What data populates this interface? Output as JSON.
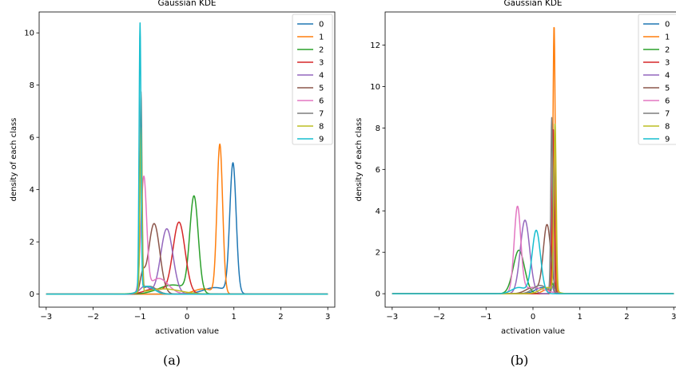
{
  "chart_data": [
    {
      "type": "line",
      "title": "Gaussian KDE",
      "xlabel": "activation value",
      "ylabel": "density of each class",
      "caption": "(a)",
      "xlim": [
        -3.15,
        3.15
      ],
      "ylim": [
        -0.5,
        10.8
      ],
      "xticks": [
        -3,
        -2,
        -1,
        0,
        1,
        2,
        3
      ],
      "xtick_labels": [
        "−3",
        "−2",
        "−1",
        "0",
        "1",
        "2",
        "3"
      ],
      "yticks": [
        0,
        2,
        4,
        6,
        8,
        10
      ],
      "ytick_labels": [
        "0",
        "2",
        "4",
        "6",
        "8",
        "10"
      ],
      "legend_position": "top-right",
      "series": [
        {
          "name": "0",
          "color": "#1f77b4",
          "components": [
            {
              "mu": 0.98,
              "sigma": 0.068,
              "peak": 4.95
            },
            {
              "mu": 0.6,
              "sigma": 0.25,
              "peak": 0.25
            }
          ]
        },
        {
          "name": "1",
          "color": "#ff7f0e",
          "components": [
            {
              "mu": 0.7,
              "sigma": 0.06,
              "peak": 5.7
            },
            {
              "mu": 0.35,
              "sigma": 0.2,
              "peak": 0.2
            }
          ]
        },
        {
          "name": "2",
          "color": "#2ca02c",
          "components": [
            {
              "mu": 0.15,
              "sigma": 0.09,
              "peak": 3.65
            },
            {
              "mu": -0.3,
              "sigma": 0.3,
              "peak": 0.35
            }
          ]
        },
        {
          "name": "3",
          "color": "#d62728",
          "components": [
            {
              "mu": -0.17,
              "sigma": 0.13,
              "peak": 2.75
            },
            {
              "mu": -0.7,
              "sigma": 0.2,
              "peak": 0.2
            }
          ]
        },
        {
          "name": "4",
          "color": "#9467bd",
          "components": [
            {
              "mu": -0.43,
              "sigma": 0.13,
              "peak": 2.5
            },
            {
              "mu": -0.9,
              "sigma": 0.1,
              "peak": 0.3
            }
          ]
        },
        {
          "name": "5",
          "color": "#8c564b",
          "components": [
            {
              "mu": -0.7,
              "sigma": 0.12,
              "peak": 2.7
            },
            {
              "mu": -0.95,
              "sigma": 0.05,
              "peak": 0.6
            }
          ]
        },
        {
          "name": "6",
          "color": "#e377c2",
          "components": [
            {
              "mu": -0.92,
              "sigma": 0.06,
              "peak": 4.35
            },
            {
              "mu": -0.6,
              "sigma": 0.2,
              "peak": 0.6
            }
          ]
        },
        {
          "name": "7",
          "color": "#7f7f7f",
          "components": [
            {
              "mu": -0.98,
              "sigma": 0.022,
              "peak": 7.6
            },
            {
              "mu": -0.8,
              "sigma": 0.15,
              "peak": 0.3
            }
          ]
        },
        {
          "name": "8",
          "color": "#bcbd22",
          "components": [
            {
              "mu": -0.98,
              "sigma": 0.022,
              "peak": 6.3
            },
            {
              "mu": -0.5,
              "sigma": 0.35,
              "peak": 0.2
            }
          ]
        },
        {
          "name": "9",
          "color": "#17becf",
          "components": [
            {
              "mu": -1.0,
              "sigma": 0.02,
              "peak": 10.2
            },
            {
              "mu": -0.85,
              "sigma": 0.15,
              "peak": 0.3
            }
          ]
        }
      ]
    },
    {
      "type": "line",
      "title": "Gaussian KDE",
      "xlabel": "activation value",
      "ylabel": "density of each class",
      "caption": "(b)",
      "xlim": [
        -3.15,
        3.15
      ],
      "ylim": [
        -0.65,
        13.6
      ],
      "xticks": [
        -3,
        -2,
        -1,
        0,
        1,
        2,
        3
      ],
      "xtick_labels": [
        "−3",
        "−2",
        "−1",
        "0",
        "1",
        "2",
        "3"
      ],
      "yticks": [
        0,
        2,
        4,
        6,
        8,
        10,
        12
      ],
      "ytick_labels": [
        "0",
        "2",
        "4",
        "6",
        "8",
        "10",
        "12"
      ],
      "legend_position": "top-right",
      "series": [
        {
          "name": "0",
          "color": "#1f77b4",
          "components": [
            {
              "mu": 0.44,
              "sigma": 0.022,
              "peak": 7.0
            },
            {
              "mu": 0.2,
              "sigma": 0.15,
              "peak": 0.3
            }
          ]
        },
        {
          "name": "1",
          "color": "#ff7f0e",
          "components": [
            {
              "mu": 0.45,
              "sigma": 0.024,
              "peak": 12.9
            },
            {
              "mu": 0.3,
              "sigma": 0.1,
              "peak": 0.2
            }
          ]
        },
        {
          "name": "2",
          "color": "#2ca02c",
          "components": [
            {
              "mu": -0.3,
              "sigma": 0.12,
              "peak": 2.1
            },
            {
              "mu": 0.42,
              "sigma": 0.025,
              "peak": 0.5
            }
          ]
        },
        {
          "name": "3",
          "color": "#d62728",
          "components": [
            {
              "mu": 0.43,
              "sigma": 0.022,
              "peak": 8.0
            }
          ]
        },
        {
          "name": "4",
          "color": "#9467bd",
          "components": [
            {
              "mu": -0.17,
              "sigma": 0.1,
              "peak": 3.55
            },
            {
              "mu": 0.4,
              "sigma": 0.03,
              "peak": 0.4
            }
          ]
        },
        {
          "name": "5",
          "color": "#8c564b",
          "components": [
            {
              "mu": 0.3,
              "sigma": 0.08,
              "peak": 3.3
            },
            {
              "mu": 0.0,
              "sigma": 0.15,
              "peak": 0.3
            }
          ]
        },
        {
          "name": "6",
          "color": "#e377c2",
          "components": [
            {
              "mu": -0.33,
              "sigma": 0.07,
              "peak": 4.1
            },
            {
              "mu": 0.0,
              "sigma": 0.25,
              "peak": 0.3
            }
          ]
        },
        {
          "name": "7",
          "color": "#7f7f7f",
          "components": [
            {
              "mu": 0.4,
              "sigma": 0.02,
              "peak": 8.4
            },
            {
              "mu": 0.15,
              "sigma": 0.15,
              "peak": 0.4
            }
          ]
        },
        {
          "name": "8",
          "color": "#bcbd22",
          "components": [
            {
              "mu": 0.47,
              "sigma": 0.025,
              "peak": 8.1
            },
            {
              "mu": 0.3,
              "sigma": 0.15,
              "peak": 0.3
            }
          ]
        },
        {
          "name": "9",
          "color": "#17becf",
          "components": [
            {
              "mu": 0.07,
              "sigma": 0.09,
              "peak": 3.05
            },
            {
              "mu": -0.3,
              "sigma": 0.15,
              "peak": 0.3
            }
          ]
        }
      ]
    }
  ]
}
